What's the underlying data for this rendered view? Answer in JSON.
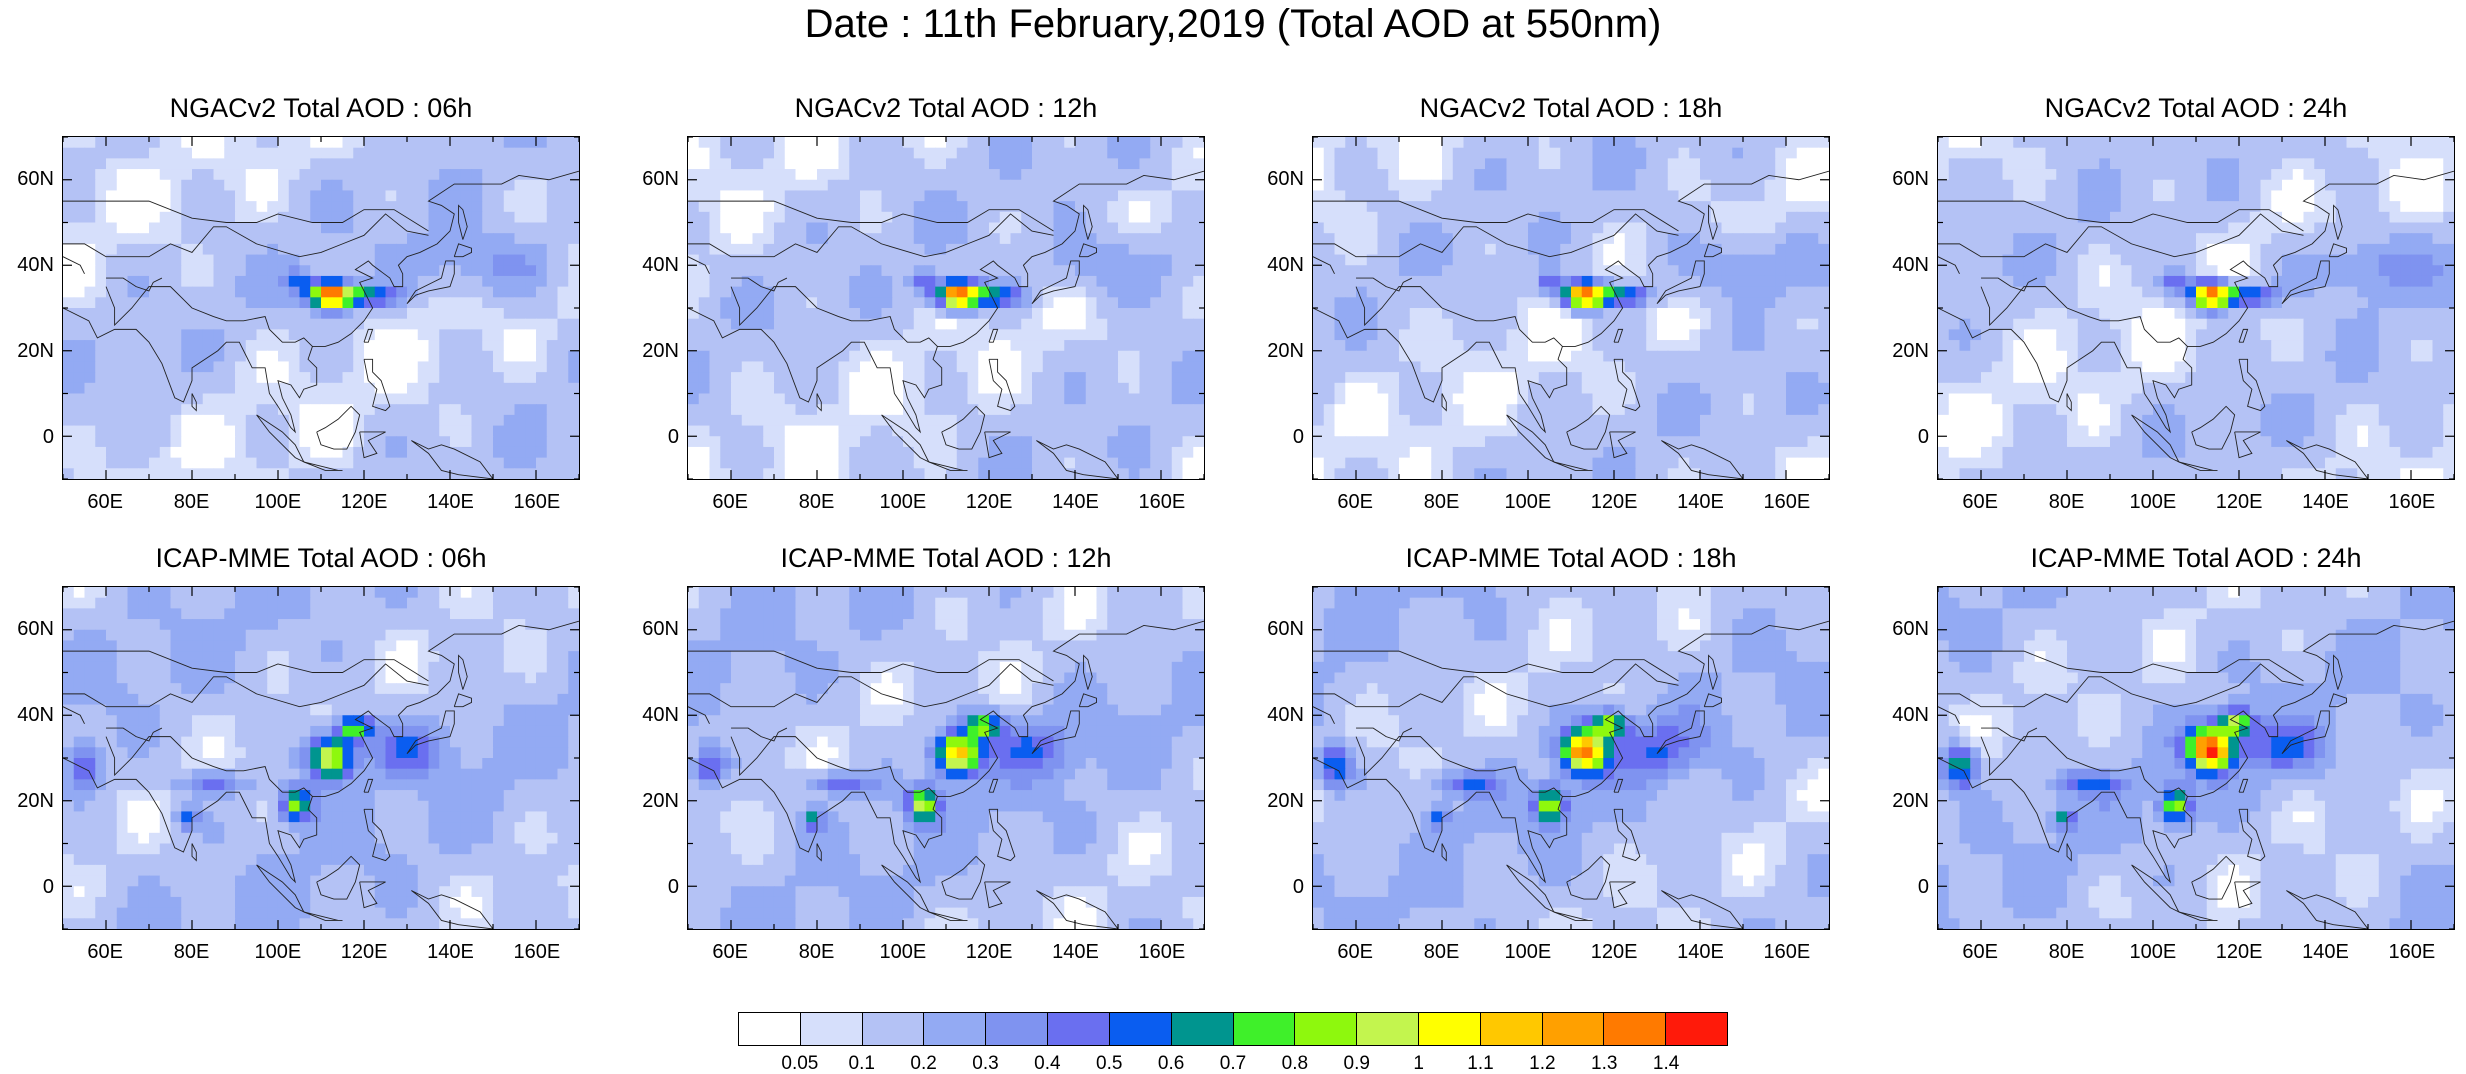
{
  "title": "Date : 11th February,2019 (Total AOD at 550nm)",
  "panels": [
    {
      "title": "NGACv2 Total AOD : 06h",
      "model": "NGACv2",
      "hour": "06h"
    },
    {
      "title": "NGACv2 Total AOD : 12h",
      "model": "NGACv2",
      "hour": "12h"
    },
    {
      "title": "NGACv2 Total AOD : 18h",
      "model": "NGACv2",
      "hour": "18h"
    },
    {
      "title": "NGACv2 Total AOD : 24h",
      "model": "NGACv2",
      "hour": "24h"
    },
    {
      "title": "ICAP-MME Total AOD : 06h",
      "model": "ICAP-MME",
      "hour": "06h"
    },
    {
      "title": "ICAP-MME Total AOD : 12h",
      "model": "ICAP-MME",
      "hour": "12h"
    },
    {
      "title": "ICAP-MME Total AOD : 18h",
      "model": "ICAP-MME",
      "hour": "18h"
    },
    {
      "title": "ICAP-MME Total AOD : 24h",
      "model": "ICAP-MME",
      "hour": "24h"
    }
  ],
  "axes": {
    "lat_labels": [
      "60N",
      "40N",
      "20N",
      "0"
    ],
    "lon_labels": [
      "60E",
      "80E",
      "100E",
      "120E",
      "140E",
      "160E"
    ],
    "lon_range": [
      50,
      170
    ],
    "lat_range": [
      -10,
      70
    ]
  },
  "colorbar": {
    "labels": [
      "0.05",
      "0.1",
      "0.2",
      "0.3",
      "0.4",
      "0.5",
      "0.6",
      "0.7",
      "0.8",
      "0.9",
      "1",
      "1.1",
      "1.2",
      "1.3",
      "1.4"
    ],
    "colors": [
      "#ffffff",
      "#d6dffb",
      "#b4c2f5",
      "#93aaf3",
      "#7f93f0",
      "#6a6ff0",
      "#0a5df0",
      "#00958f",
      "#3ff02a",
      "#8ef80d",
      "#c3f54e",
      "#ffff00",
      "#ffc800",
      "#ffa000",
      "#ff7a00",
      "#ff1a0a"
    ]
  }
}
